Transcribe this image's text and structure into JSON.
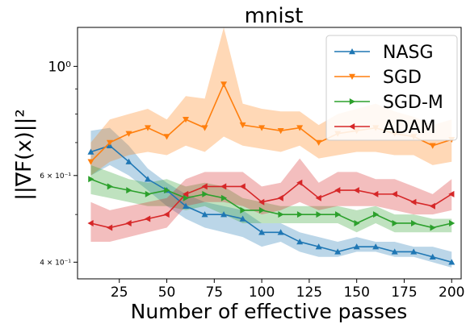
{
  "chart_data": {
    "type": "line",
    "title": "mnist",
    "xlabel": "Number of effective passes",
    "ylabel": "||∇F(x)||²",
    "yscale": "log",
    "xlim": [
      3,
      205
    ],
    "ylim": [
      0.37,
      1.2
    ],
    "grid": false,
    "legend_position": "top-right",
    "x_ticks": [
      25,
      50,
      75,
      100,
      125,
      150,
      175,
      200
    ],
    "y_ticks": [
      {
        "value": 1.0,
        "label": "10⁰"
      },
      {
        "value": 0.6,
        "label": "6 × 10⁻¹"
      },
      {
        "value": 0.4,
        "label": "4 × 10⁻¹"
      }
    ],
    "y_minor_ticks": [
      0.5,
      0.7,
      0.8,
      0.9
    ],
    "x": [
      10,
      20,
      30,
      40,
      50,
      60,
      70,
      80,
      90,
      100,
      110,
      120,
      130,
      140,
      150,
      160,
      170,
      180,
      190,
      200
    ],
    "series": [
      {
        "name": "NASG",
        "color": "#1f77b4",
        "marker": "triangle-up",
        "values": [
          0.67,
          0.69,
          0.64,
          0.59,
          0.56,
          0.52,
          0.5,
          0.5,
          0.49,
          0.46,
          0.46,
          0.44,
          0.43,
          0.42,
          0.43,
          0.43,
          0.42,
          0.42,
          0.41,
          0.4
        ],
        "lower": [
          0.6,
          0.63,
          0.6,
          0.56,
          0.52,
          0.49,
          0.47,
          0.46,
          0.45,
          0.43,
          0.44,
          0.42,
          0.41,
          0.41,
          0.42,
          0.42,
          0.41,
          0.41,
          0.4,
          0.39
        ],
        "upper": [
          0.74,
          0.75,
          0.69,
          0.62,
          0.58,
          0.55,
          0.53,
          0.52,
          0.51,
          0.48,
          0.48,
          0.46,
          0.45,
          0.44,
          0.45,
          0.44,
          0.44,
          0.43,
          0.43,
          0.42
        ]
      },
      {
        "name": "SGD",
        "color": "#ff7f0e",
        "marker": "triangle-down",
        "values": [
          0.64,
          0.7,
          0.73,
          0.75,
          0.72,
          0.78,
          0.75,
          0.92,
          0.76,
          0.75,
          0.74,
          0.75,
          0.7,
          0.73,
          0.74,
          0.75,
          0.73,
          0.72,
          0.69,
          0.71
        ],
        "lower": [
          0.6,
          0.64,
          0.66,
          0.67,
          0.66,
          0.69,
          0.67,
          0.72,
          0.69,
          0.68,
          0.67,
          0.69,
          0.65,
          0.66,
          0.67,
          0.67,
          0.66,
          0.66,
          0.63,
          0.64
        ],
        "upper": [
          0.7,
          0.78,
          0.8,
          0.82,
          0.78,
          0.87,
          0.86,
          1.2,
          0.84,
          0.82,
          0.81,
          0.81,
          0.76,
          0.8,
          0.82,
          0.84,
          0.81,
          0.79,
          0.76,
          0.78
        ]
      },
      {
        "name": "SGD-M",
        "color": "#2ca02c",
        "marker": "triangle-right",
        "values": [
          0.59,
          0.57,
          0.56,
          0.55,
          0.56,
          0.54,
          0.55,
          0.54,
          0.51,
          0.51,
          0.5,
          0.5,
          0.5,
          0.5,
          0.48,
          0.5,
          0.48,
          0.48,
          0.47,
          0.48
        ],
        "lower": [
          0.55,
          0.54,
          0.53,
          0.52,
          0.52,
          0.51,
          0.52,
          0.5,
          0.48,
          0.48,
          0.48,
          0.48,
          0.48,
          0.48,
          0.46,
          0.48,
          0.46,
          0.46,
          0.46,
          0.46
        ],
        "upper": [
          0.63,
          0.61,
          0.59,
          0.58,
          0.59,
          0.57,
          0.58,
          0.57,
          0.54,
          0.53,
          0.52,
          0.52,
          0.52,
          0.52,
          0.51,
          0.52,
          0.5,
          0.5,
          0.49,
          0.49
        ]
      },
      {
        "name": "ADAM",
        "color": "#d62728",
        "marker": "triangle-left",
        "values": [
          0.48,
          0.47,
          0.48,
          0.49,
          0.5,
          0.55,
          0.57,
          0.57,
          0.57,
          0.53,
          0.54,
          0.58,
          0.54,
          0.56,
          0.56,
          0.55,
          0.55,
          0.53,
          0.52,
          0.55
        ],
        "lower": [
          0.44,
          0.44,
          0.45,
          0.46,
          0.47,
          0.52,
          0.53,
          0.53,
          0.52,
          0.5,
          0.51,
          0.53,
          0.51,
          0.52,
          0.52,
          0.52,
          0.51,
          0.5,
          0.5,
          0.51
        ],
        "upper": [
          0.53,
          0.51,
          0.52,
          0.53,
          0.54,
          0.59,
          0.61,
          0.61,
          0.61,
          0.57,
          0.58,
          0.65,
          0.58,
          0.61,
          0.61,
          0.59,
          0.59,
          0.57,
          0.55,
          0.59
        ]
      }
    ]
  }
}
